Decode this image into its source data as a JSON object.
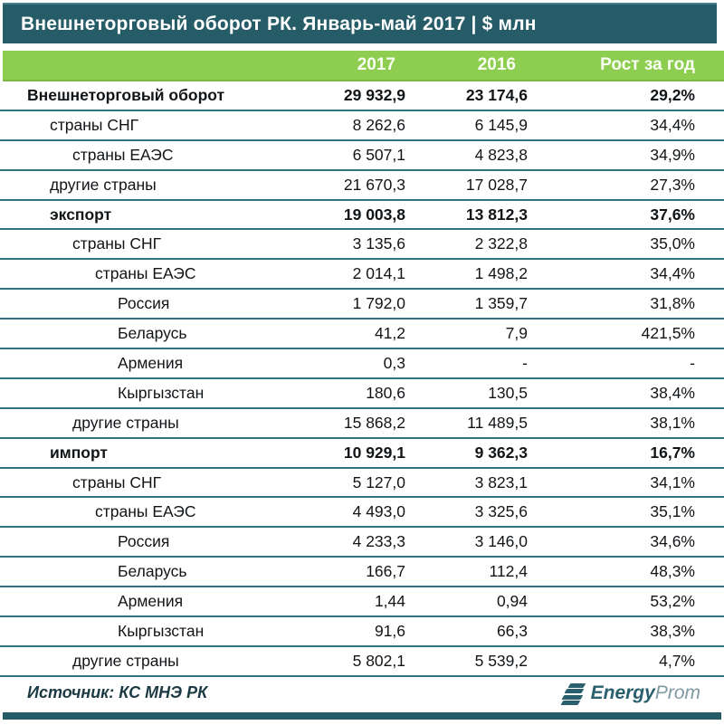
{
  "page": {
    "title": "Внешнеторговый оборот РК. Январь-май 2017 | $ млн"
  },
  "header": {
    "col_2017": "2017",
    "col_2016": "2016",
    "col_growth": "Рост за год"
  },
  "footer": {
    "source": "Источник: КС МНЭ РК",
    "logo_energy": "Energy",
    "logo_prom": "Prom"
  },
  "colors": {
    "title_bar": "#265c68",
    "header_green": "#8dce50",
    "row_line": "#2f7280",
    "logo_teal": "#2a5f6e",
    "logo_gray": "#8199a2"
  },
  "chart_data": {
    "type": "table",
    "title": "Внешнеторговый оборот РК. Январь-май 2017 | $ млн",
    "columns": [
      "2017",
      "2016",
      "Рост за год"
    ],
    "rows": [
      {
        "label": "Внешнеторговый оборот",
        "indent": 0,
        "bold": true,
        "y2017": "29 932,9",
        "y2016": "23 174,6",
        "growth": "29,2%"
      },
      {
        "label": "страны СНГ",
        "indent": 1,
        "bold": false,
        "y2017": "8 262,6",
        "y2016": "6 145,9",
        "growth": "34,4%"
      },
      {
        "label": "страны ЕАЭС",
        "indent": 2,
        "bold": false,
        "y2017": "6 507,1",
        "y2016": "4 823,8",
        "growth": "34,9%"
      },
      {
        "label": "другие страны",
        "indent": 1,
        "bold": false,
        "y2017": "21 670,3",
        "y2016": "17 028,7",
        "growth": "27,3%"
      },
      {
        "label": "экспорт",
        "indent": 1,
        "bold": true,
        "y2017": "19 003,8",
        "y2016": "13 812,3",
        "growth": "37,6%"
      },
      {
        "label": "страны СНГ",
        "indent": 2,
        "bold": false,
        "y2017": "3 135,6",
        "y2016": "2 322,8",
        "growth": "35,0%"
      },
      {
        "label": "страны ЕАЭС",
        "indent": 3,
        "bold": false,
        "y2017": "2 014,1",
        "y2016": "1 498,2",
        "growth": "34,4%"
      },
      {
        "label": "Россия",
        "indent": 4,
        "bold": false,
        "y2017": "1 792,0",
        "y2016": "1 359,7",
        "growth": "31,8%"
      },
      {
        "label": "Беларусь",
        "indent": 4,
        "bold": false,
        "y2017": "41,2",
        "y2016": "7,9",
        "growth": "421,5%"
      },
      {
        "label": "Армения",
        "indent": 4,
        "bold": false,
        "y2017": "0,3",
        "y2016": "-",
        "growth": "-"
      },
      {
        "label": "Кыргызстан",
        "indent": 4,
        "bold": false,
        "y2017": "180,6",
        "y2016": "130,5",
        "growth": "38,4%"
      },
      {
        "label": "другие страны",
        "indent": 2,
        "bold": false,
        "y2017": "15 868,2",
        "y2016": "11 489,5",
        "growth": "38,1%"
      },
      {
        "label": "импорт",
        "indent": 1,
        "bold": true,
        "y2017": "10 929,1",
        "y2016": "9 362,3",
        "growth": "16,7%"
      },
      {
        "label": "страны СНГ",
        "indent": 2,
        "bold": false,
        "y2017": "5 127,0",
        "y2016": "3 823,1",
        "growth": "34,1%"
      },
      {
        "label": "страны ЕАЭС",
        "indent": 3,
        "bold": false,
        "y2017": "4 493,0",
        "y2016": "3 325,6",
        "growth": "35,1%"
      },
      {
        "label": "Россия",
        "indent": 4,
        "bold": false,
        "y2017": "4 233,3",
        "y2016": "3 146,0",
        "growth": "34,6%"
      },
      {
        "label": "Беларусь",
        "indent": 4,
        "bold": false,
        "y2017": "166,7",
        "y2016": "112,4",
        "growth": "48,3%"
      },
      {
        "label": "Армения",
        "indent": 4,
        "bold": false,
        "y2017": "1,44",
        "y2016": "0,94",
        "growth": "53,2%"
      },
      {
        "label": "Кыргызстан",
        "indent": 4,
        "bold": false,
        "y2017": "91,6",
        "y2016": "66,3",
        "growth": "38,3%"
      },
      {
        "label": "другие страны",
        "indent": 2,
        "bold": false,
        "y2017": "5 802,1",
        "y2016": "5 539,2",
        "growth": "4,7%"
      }
    ]
  }
}
